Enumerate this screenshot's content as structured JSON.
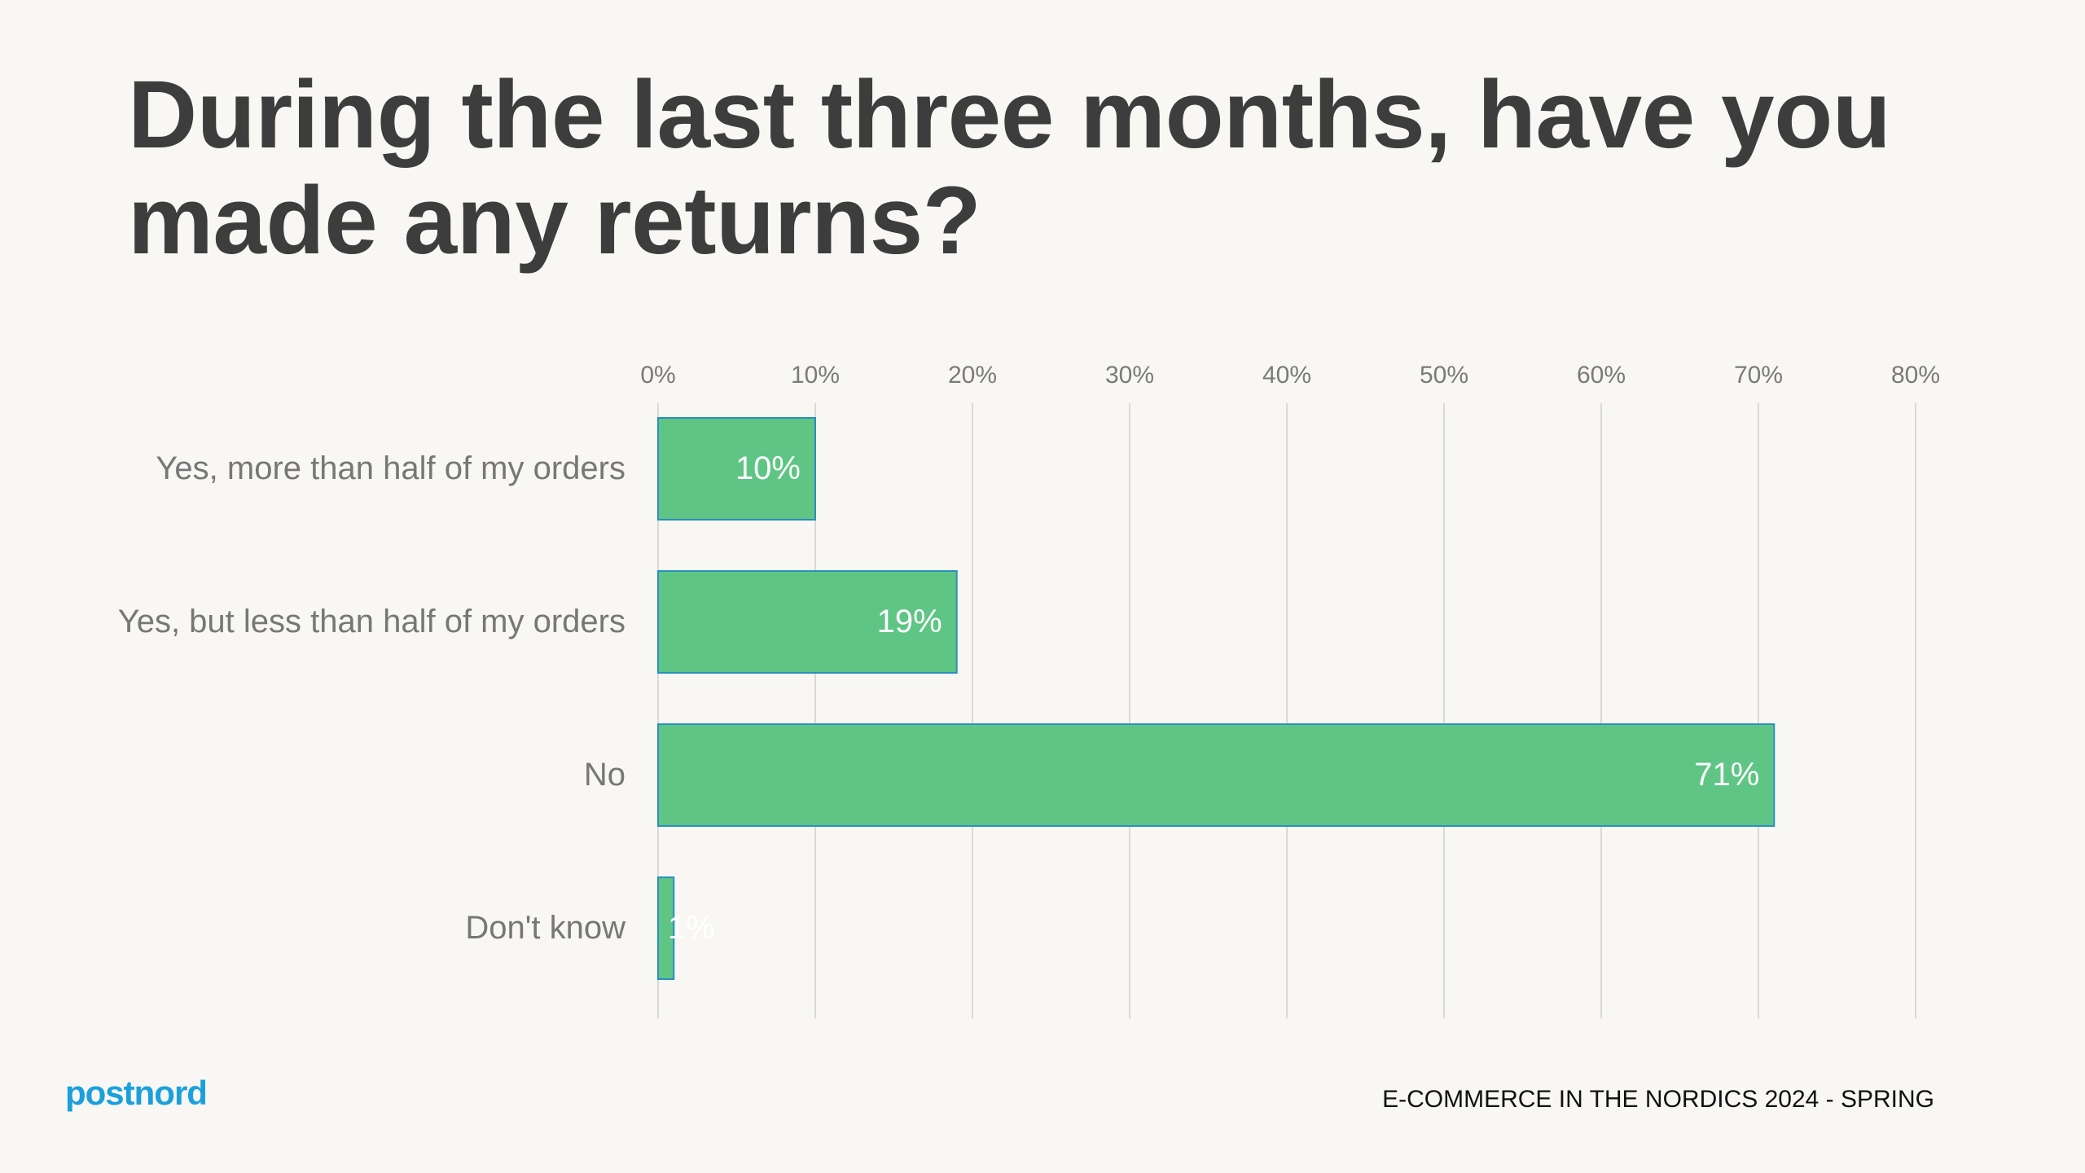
{
  "slide": {
    "title": "During the last three months, have you made any returns?",
    "footer": "E-COMMERCE IN THE NORDICS 2024 - SPRING",
    "logo_text": "postnord"
  },
  "colors": {
    "background": "#f8f7f4",
    "bar_fill": "#5fc584",
    "bar_stroke": "#2a8fc0",
    "title": "#3d3d3d",
    "axis_text": "#7a7a7a",
    "category_text": "#777777",
    "data_label": "#ffffff",
    "grid": "#d9d9d9",
    "logo": "#1aa0dc"
  },
  "chart_data": {
    "type": "bar",
    "orientation": "horizontal",
    "categories": [
      "Yes, more than half of my orders",
      "Yes, but less than half of my orders",
      "No",
      "Don't know"
    ],
    "values": [
      10,
      19,
      71,
      1
    ],
    "data_labels": [
      "10%",
      "19%",
      "71%",
      "1%"
    ],
    "xlim": [
      0,
      80
    ],
    "x_ticks": [
      0,
      10,
      20,
      30,
      40,
      50,
      60,
      70,
      80
    ],
    "x_tick_labels": [
      "0%",
      "10%",
      "20%",
      "30%",
      "40%",
      "50%",
      "60%",
      "70%",
      "80%"
    ],
    "axis_position": "top",
    "grid": true,
    "legend": "none"
  }
}
